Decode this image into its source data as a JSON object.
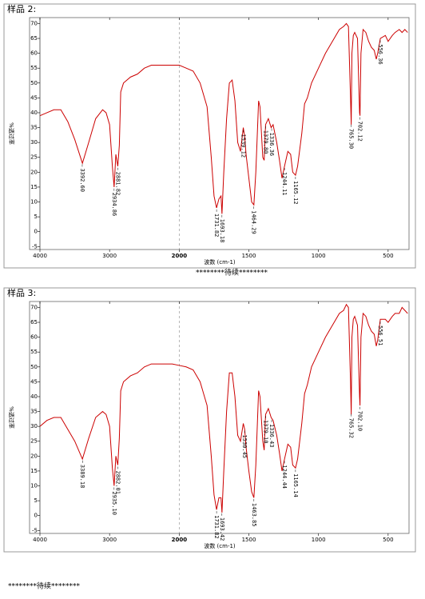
{
  "chart_data": [
    {
      "type": "line",
      "title": "样品 2:",
      "x_label": "波数 (cm-1)",
      "y_label": "%透过率",
      "xlim": [
        4000,
        350
      ],
      "xticks": [
        4000,
        3000,
        2000,
        1500,
        1000,
        500
      ],
      "x_break": 2000,
      "ylim": [
        -6,
        72
      ],
      "yticks": [
        -5,
        0,
        5,
        10,
        15,
        20,
        25,
        30,
        35,
        40,
        45,
        50,
        55,
        60,
        65,
        70
      ],
      "x": [
        4000,
        3900,
        3800,
        3700,
        3600,
        3500,
        3390,
        3300,
        3200,
        3100,
        3050,
        3000,
        2960,
        2935,
        2910,
        2882,
        2860,
        2840,
        2800,
        2700,
        2600,
        2500,
        2400,
        2300,
        2200,
        2100,
        2000,
        1950,
        1900,
        1850,
        1800,
        1770,
        1750,
        1732,
        1715,
        1700,
        1693,
        1680,
        1660,
        1640,
        1620,
        1600,
        1580,
        1560,
        1540,
        1530,
        1520,
        1500,
        1480,
        1464,
        1450,
        1430,
        1420,
        1400,
        1390,
        1380,
        1360,
        1340,
        1326,
        1300,
        1280,
        1262,
        1244,
        1220,
        1200,
        1185,
        1165,
        1150,
        1120,
        1100,
        1080,
        1050,
        1000,
        950,
        900,
        850,
        820,
        800,
        785,
        770,
        765,
        760,
        750,
        740,
        720,
        705,
        702,
        695,
        680,
        660,
        640,
        620,
        600,
        585,
        575,
        556,
        520,
        500,
        470,
        450,
        420,
        400,
        380,
        360
      ],
      "series": [
        {
          "color": "#cc0000",
          "values": [
            39,
            40,
            41,
            41,
            37,
            31,
            23,
            30,
            38,
            41,
            40,
            36,
            22,
            15,
            26,
            22,
            29,
            47,
            50,
            52,
            53,
            55,
            56,
            56,
            56,
            56,
            56,
            55,
            54,
            50,
            42,
            25,
            12,
            8,
            11,
            12,
            6,
            20,
            38,
            50,
            51,
            44,
            30,
            27,
            35,
            32,
            26,
            18,
            10,
            9,
            20,
            44,
            42,
            25,
            24,
            36,
            38,
            35,
            36,
            30,
            24,
            18,
            22,
            27,
            26,
            20,
            19,
            22,
            33,
            43,
            45,
            50,
            55,
            60,
            64,
            68,
            69,
            70,
            69,
            45,
            36,
            60,
            66,
            67,
            65,
            40,
            39,
            60,
            68,
            67,
            64,
            62,
            61,
            58,
            60,
            65,
            66,
            64,
            66,
            67,
            68,
            67,
            68,
            67
          ]
        }
      ],
      "peaks": [
        {
          "value": 3392.6,
          "label": "3392.60"
        },
        {
          "value": 2934.86,
          "label": "2934.86"
        },
        {
          "value": 2881.82,
          "label": "2881.82"
        },
        {
          "value": 1731.82,
          "label": "1731.82"
        },
        {
          "value": 1693.18,
          "label": "1693.18"
        },
        {
          "value": 1539.12,
          "label": "1539.12"
        },
        {
          "value": 1464.29,
          "label": "1464.29"
        },
        {
          "value": 1379.8,
          "label": "1379.80"
        },
        {
          "value": 1336.36,
          "label": "1336.36"
        },
        {
          "value": 1244.11,
          "label": "1244.11"
        },
        {
          "value": 1165.12,
          "label": "1165.12"
        },
        {
          "value": 765.3,
          "label": "765.30"
        },
        {
          "value": 702.12,
          "label": "702.12"
        },
        {
          "value": 556.36,
          "label": "556.36"
        }
      ]
    },
    {
      "type": "line",
      "title": "样品 3:",
      "x_label": "波数 (cm-1)",
      "y_label": "%透过率",
      "xlim": [
        4000,
        350
      ],
      "xticks": [
        4000,
        3000,
        2000,
        1500,
        1000,
        500
      ],
      "x_break": 2000,
      "ylim": [
        -6,
        72
      ],
      "yticks": [
        -5,
        0,
        5,
        10,
        15,
        20,
        25,
        30,
        35,
        40,
        45,
        50,
        55,
        60,
        65,
        70
      ],
      "x": [
        4000,
        3900,
        3800,
        3700,
        3600,
        3500,
        3390,
        3300,
        3200,
        3100,
        3050,
        3000,
        2960,
        2935,
        2910,
        2882,
        2860,
        2840,
        2800,
        2700,
        2600,
        2500,
        2400,
        2300,
        2200,
        2100,
        2000,
        1950,
        1900,
        1850,
        1800,
        1770,
        1750,
        1732,
        1715,
        1700,
        1693,
        1680,
        1660,
        1640,
        1620,
        1600,
        1580,
        1560,
        1540,
        1530,
        1520,
        1500,
        1480,
        1464,
        1450,
        1430,
        1420,
        1400,
        1390,
        1380,
        1360,
        1340,
        1326,
        1300,
        1280,
        1262,
        1244,
        1220,
        1200,
        1185,
        1165,
        1150,
        1120,
        1100,
        1080,
        1050,
        1000,
        950,
        900,
        850,
        820,
        800,
        785,
        770,
        765,
        760,
        750,
        740,
        720,
        705,
        702,
        695,
        680,
        660,
        640,
        620,
        600,
        585,
        575,
        556,
        520,
        500,
        470,
        450,
        420,
        400,
        380,
        360
      ],
      "series": [
        {
          "color": "#cc0000",
          "values": [
            30,
            32,
            33,
            33,
            29,
            25,
            19,
            26,
            33,
            35,
            34,
            30,
            16,
            10,
            20,
            17,
            26,
            42,
            45,
            47,
            48,
            50,
            51,
            51,
            51,
            51,
            50.5,
            50,
            49,
            45,
            37,
            20,
            7,
            2,
            6,
            6,
            1,
            15,
            35,
            48,
            48,
            40,
            27,
            25,
            31,
            29,
            23,
            15,
            8,
            6,
            17,
            42,
            40,
            25,
            22,
            34,
            36,
            33,
            32,
            27,
            21,
            15,
            19,
            24,
            23,
            17,
            16,
            19,
            31,
            41,
            44,
            50,
            55,
            60,
            64,
            68,
            69,
            71,
            70,
            45,
            34,
            60,
            66,
            67,
            64,
            40,
            37,
            60,
            68,
            67,
            64,
            62,
            61,
            57,
            59,
            66,
            66,
            65,
            67,
            68,
            68,
            70,
            69,
            68
          ]
        }
      ],
      "peaks": [
        {
          "value": 3389.18,
          "label": "3389.18"
        },
        {
          "value": 2935.1,
          "label": "2935.10"
        },
        {
          "value": 2882.01,
          "label": "2882.01"
        },
        {
          "value": 1731.82,
          "label": "1731.82"
        },
        {
          "value": 1693.42,
          "label": "1693.42"
        },
        {
          "value": 1530.45,
          "label": "1530.45"
        },
        {
          "value": 1463.85,
          "label": "1463.85"
        },
        {
          "value": 1379.1,
          "label": "1379.10"
        },
        {
          "value": 1336.43,
          "label": "1336.43"
        },
        {
          "value": 1244.44,
          "label": "1244.44"
        },
        {
          "value": 1165.14,
          "label": "1165.14"
        },
        {
          "value": 765.32,
          "label": "765.32"
        },
        {
          "value": 702.1,
          "label": "702.10"
        },
        {
          "value": 556.51,
          "label": "556.51"
        }
      ]
    }
  ],
  "footers": [
    "********待续********",
    "********待续********"
  ]
}
